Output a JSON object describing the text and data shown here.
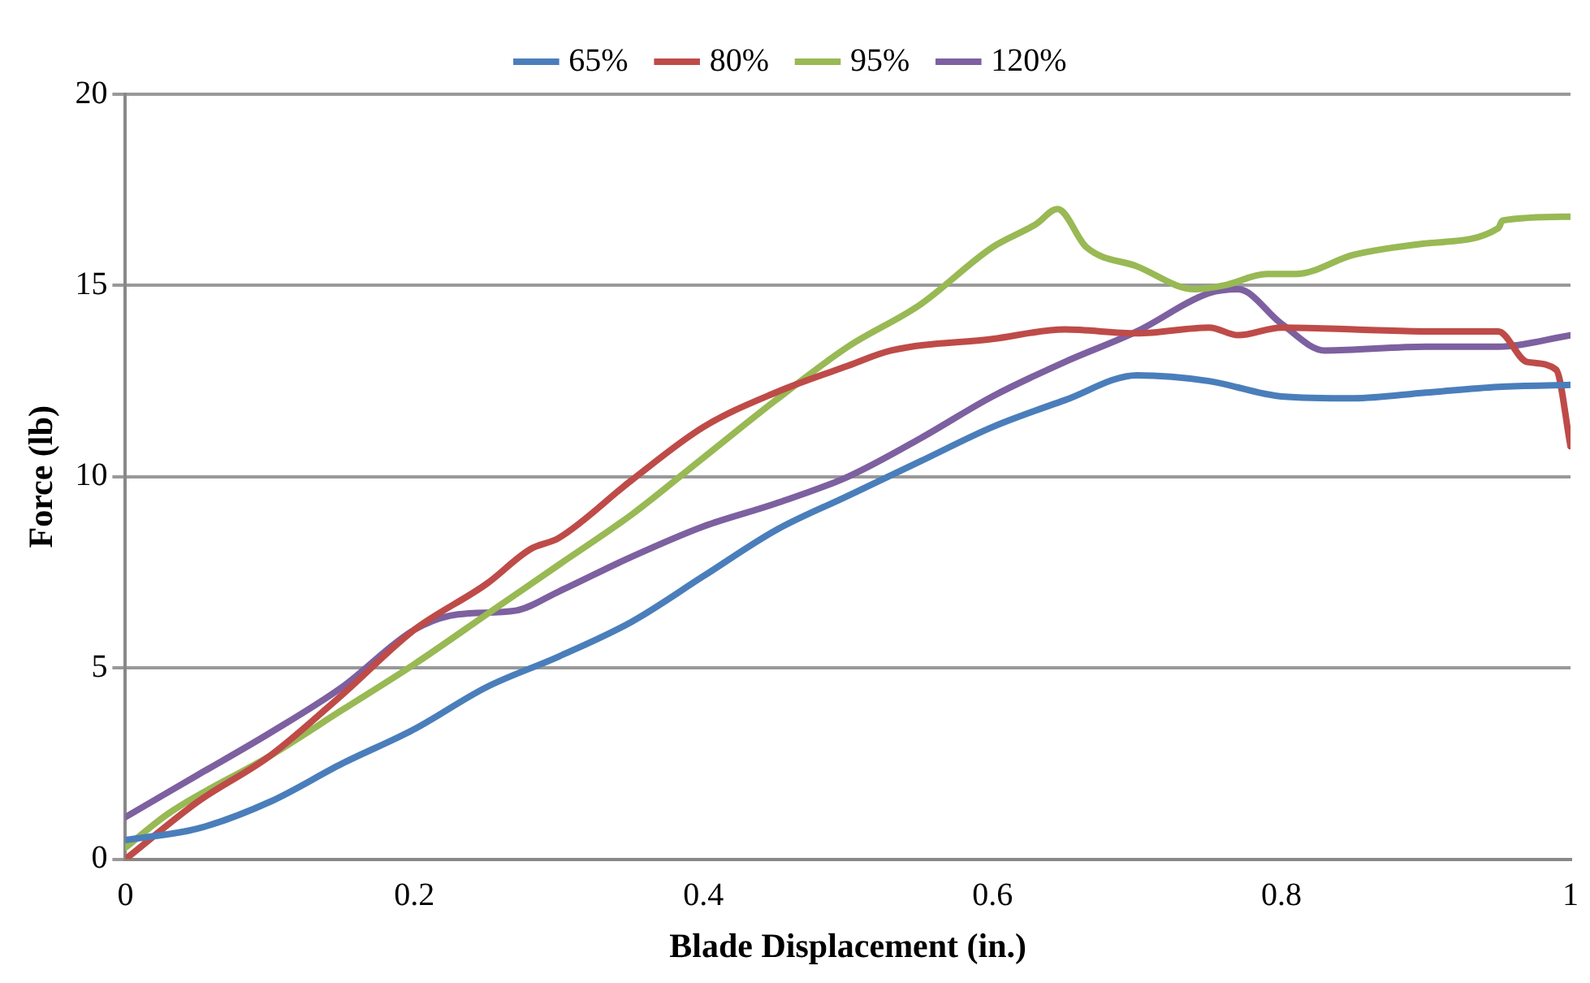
{
  "chart_data": {
    "type": "line",
    "xlabel": "Blade Displacement (in.)",
    "ylabel": "Force (lb)",
    "xlim": [
      0,
      1
    ],
    "xticks": [
      0,
      0.2,
      0.4,
      0.6,
      0.8,
      1
    ],
    "ylim": [
      0,
      20
    ],
    "yticks": [
      0,
      5,
      10,
      15,
      20
    ],
    "grid": "y",
    "legend": "top",
    "marker": "none",
    "line_style": "solid",
    "series": [
      {
        "name": "65%",
        "color": "#4a7ebb",
        "x": [
          0,
          0.05,
          0.1,
          0.15,
          0.2,
          0.25,
          0.3,
          0.35,
          0.4,
          0.45,
          0.5,
          0.55,
          0.6,
          0.65,
          0.7,
          0.75,
          0.8,
          0.85,
          0.9,
          0.95,
          1.0
        ],
        "values": [
          0.5,
          0.8,
          1.5,
          2.5,
          3.4,
          4.5,
          5.3,
          6.2,
          7.4,
          8.6,
          9.5,
          10.4,
          11.3,
          12.0,
          12.65,
          12.5,
          12.1,
          12.05,
          12.2,
          12.35,
          12.4
        ]
      },
      {
        "name": "80%",
        "color": "#be4b48",
        "x": [
          0,
          0.05,
          0.1,
          0.15,
          0.2,
          0.25,
          0.28,
          0.3,
          0.35,
          0.4,
          0.45,
          0.5,
          0.53,
          0.6,
          0.65,
          0.7,
          0.75,
          0.77,
          0.8,
          0.85,
          0.9,
          0.95,
          0.97,
          0.99,
          1.0
        ],
        "values": [
          0,
          1.5,
          2.7,
          4.3,
          6.0,
          7.2,
          8.1,
          8.4,
          9.9,
          11.3,
          12.2,
          12.9,
          13.3,
          13.6,
          13.85,
          13.75,
          13.9,
          13.7,
          13.9,
          13.85,
          13.8,
          13.8,
          13.0,
          12.8,
          10.8
        ]
      },
      {
        "name": "95%",
        "color": "#98b954",
        "x": [
          0,
          0.03,
          0.1,
          0.15,
          0.2,
          0.25,
          0.3,
          0.35,
          0.4,
          0.45,
          0.5,
          0.55,
          0.6,
          0.63,
          0.645,
          0.665,
          0.7,
          0.74,
          0.76,
          0.79,
          0.81,
          0.85,
          0.9,
          0.95,
          0.953,
          1.0
        ],
        "values": [
          0.3,
          1.2,
          2.7,
          3.9,
          5.1,
          6.4,
          7.7,
          9.0,
          10.5,
          12.0,
          13.4,
          14.5,
          16.0,
          16.6,
          17.0,
          16.0,
          15.5,
          14.9,
          15.0,
          15.3,
          15.3,
          15.8,
          16.1,
          16.5,
          16.7,
          16.8
        ]
      },
      {
        "name": "120%",
        "color": "#7d60a0",
        "x": [
          0,
          0.05,
          0.1,
          0.15,
          0.2,
          0.23,
          0.27,
          0.3,
          0.35,
          0.4,
          0.45,
          0.5,
          0.55,
          0.6,
          0.65,
          0.7,
          0.75,
          0.77,
          0.8,
          0.83,
          0.9,
          0.95,
          1.0
        ],
        "values": [
          1.1,
          2.2,
          3.3,
          4.5,
          6.0,
          6.4,
          6.5,
          7.0,
          7.9,
          8.7,
          9.3,
          10.0,
          11.0,
          12.1,
          13.0,
          13.8,
          14.8,
          14.9,
          14.0,
          13.3,
          13.4,
          13.4,
          13.7
        ]
      }
    ]
  }
}
